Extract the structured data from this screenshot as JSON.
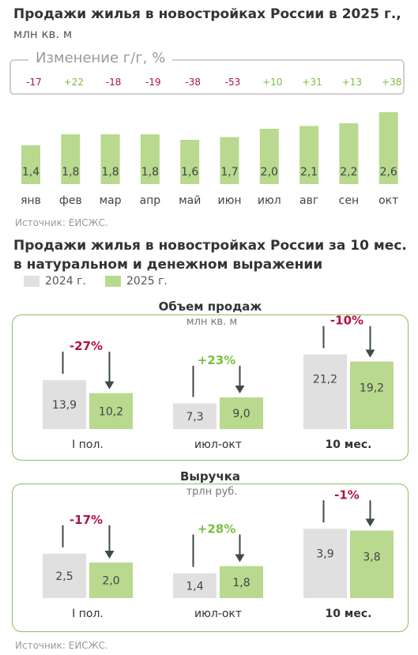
{
  "chart_data": [
    {
      "type": "bar",
      "title": "Продажи жилья в новостройках России в 2025 г.,",
      "subtitle": "млн кв. м",
      "categories": [
        "янв",
        "фев",
        "мар",
        "апр",
        "май",
        "июн",
        "июл",
        "авг",
        "сен",
        "окт"
      ],
      "values": [
        1.4,
        1.8,
        1.8,
        1.8,
        1.6,
        1.7,
        2.0,
        2.1,
        2.2,
        2.6
      ],
      "value_labels": [
        "1,4",
        "1,8",
        "1,8",
        "1,8",
        "1,6",
        "1,7",
        "2,0",
        "2,1",
        "2,2",
        "2,6"
      ],
      "yoy_title": "Изменение г/г, %",
      "yoy_labels": [
        "-17",
        "+22",
        "-18",
        "-19",
        "-38",
        "-53",
        "+10",
        "+31",
        "+13",
        "+38"
      ],
      "source": "Источник: ЕИСЖС."
    },
    {
      "type": "bar",
      "title": "Продажи жилья в новостройках России за 10 мес.",
      "title_line2": "в натуральном и денежном выражении",
      "legend": [
        "2024 г.",
        "2025 г."
      ],
      "panels": [
        {
          "title": "Объем продаж",
          "unit": "млн кв. м",
          "groups": [
            {
              "label": "I пол.",
              "bold": false,
              "v2024": 13.9,
              "v2025": 10.2,
              "l2024": "13,9",
              "l2025": "10,2",
              "change": "-27%"
            },
            {
              "label": "июл-окт",
              "bold": false,
              "v2024": 7.3,
              "v2025": 9.0,
              "l2024": "7,3",
              "l2025": "9,0",
              "change": "+23%"
            },
            {
              "label": "10 мес.",
              "bold": true,
              "v2024": 21.2,
              "v2025": 19.2,
              "l2024": "21,2",
              "l2025": "19,2",
              "change": "-10%"
            }
          ]
        },
        {
          "title": "Выручка",
          "unit": "трлн руб.",
          "groups": [
            {
              "label": "I пол.",
              "bold": false,
              "v2024": 2.5,
              "v2025": 2.0,
              "l2024": "2,5",
              "l2025": "2,0",
              "change": "-17%"
            },
            {
              "label": "июл-окт",
              "bold": false,
              "v2024": 1.4,
              "v2025": 1.8,
              "l2024": "1,4",
              "l2025": "1,8",
              "change": "+28%"
            },
            {
              "label": "10 мес.",
              "bold": true,
              "v2024": 3.9,
              "v2025": 3.8,
              "l2024": "3,9",
              "l2025": "3,8",
              "change": "-1%"
            }
          ]
        }
      ],
      "source": "Источник: ЕИСЖС."
    }
  ],
  "colors": {
    "bar2025": "#b8d98e",
    "bar2024": "#e0e0e0",
    "negative": "#b0133f",
    "positive": "#7cbf3f",
    "arrow": "#3f4a4a"
  }
}
